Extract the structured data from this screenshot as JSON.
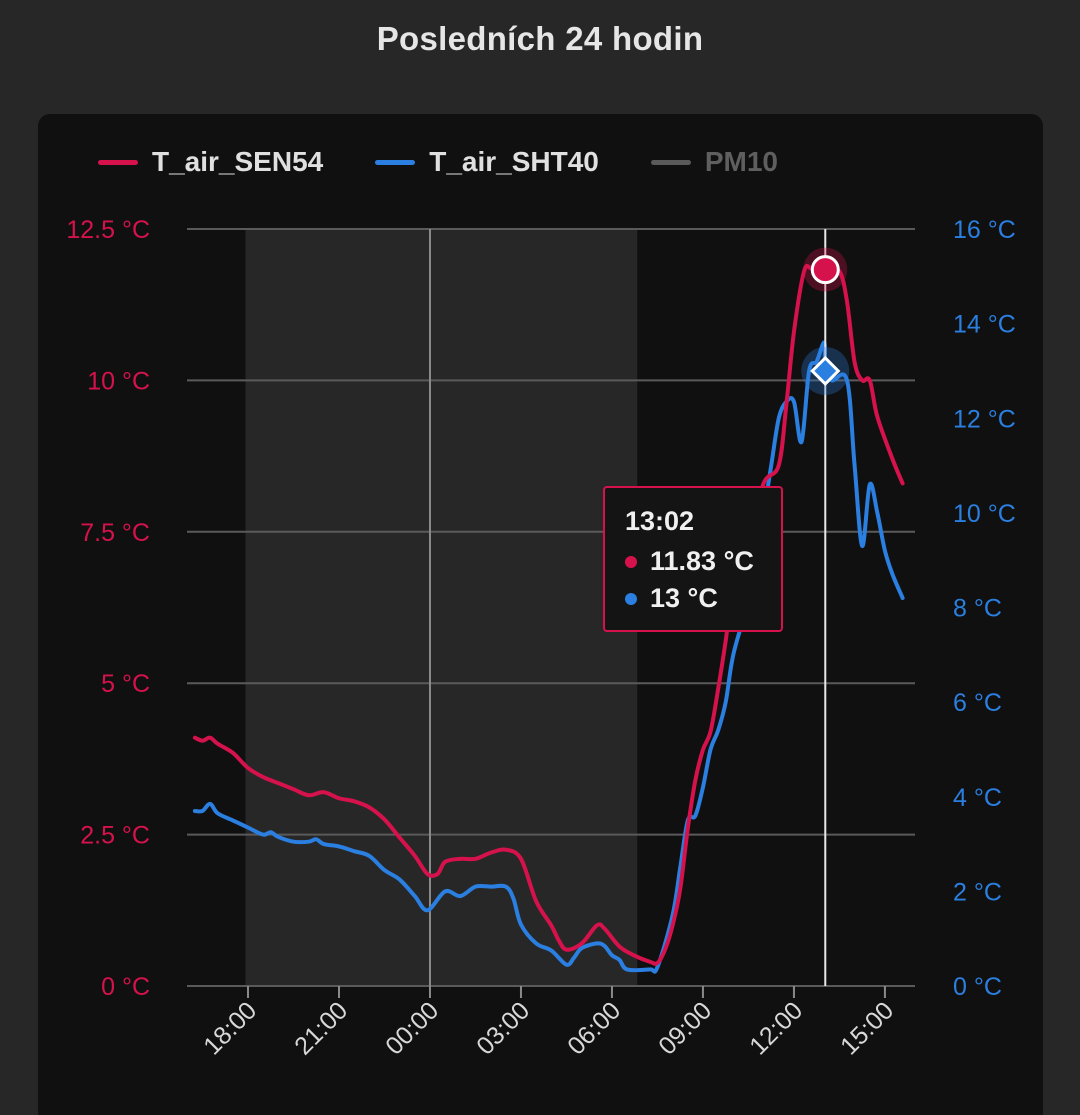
{
  "page": {
    "title": "Posledních 24 hodin"
  },
  "legend": [
    {
      "name": "T_air_SEN54",
      "color": "#d6124d",
      "hidden": false
    },
    {
      "name": "T_air_SHT40",
      "color": "#2a7fe0",
      "hidden": false
    },
    {
      "name": "PM10",
      "color": "#5a5a5a",
      "hidden": true
    }
  ],
  "tooltip": {
    "time": "13:02",
    "rows": [
      {
        "text": "11.83 °C",
        "color": "#d6124d"
      },
      {
        "text": "13 °C",
        "color": "#2a7fe0"
      }
    ]
  },
  "chart_data": {
    "type": "line",
    "x_unit": "hours",
    "x_range": [
      16.5,
      16.0
    ],
    "night_band": [
      "17:55",
      "06:50"
    ],
    "cursor_time": "13:02",
    "midnight_line": "00:00",
    "xticks": [
      "18:00",
      "21:00",
      "00:00",
      "03:00",
      "06:00",
      "09:00",
      "12:00",
      "15:00"
    ],
    "y_left": {
      "ticks": [
        "0 °C",
        "2.5 °C",
        "5 °C",
        "7.5 °C",
        "10 °C",
        "12.5 °C"
      ],
      "values": [
        0,
        2.5,
        5,
        7.5,
        10,
        12.5
      ],
      "range": [
        0,
        12.5
      ]
    },
    "y_right": {
      "ticks": [
        "0 °C",
        "2 °C",
        "4 °C",
        "6 °C",
        "8 °C",
        "10 °C",
        "12 °C",
        "14 °C",
        "16 °C"
      ],
      "values": [
        0,
        2,
        4,
        6,
        8,
        10,
        12,
        14,
        16
      ],
      "range": [
        0,
        16
      ]
    },
    "grid": true,
    "legend_position": "top-left",
    "series": [
      {
        "name": "T_air_SEN54",
        "axis": "left",
        "color": "#d6124d",
        "points": [
          [
            "16:15",
            4.1
          ],
          [
            "16:30",
            4.05
          ],
          [
            "16:45",
            4.1
          ],
          [
            "17:00",
            4.0
          ],
          [
            "17:30",
            3.85
          ],
          [
            "18:00",
            3.6
          ],
          [
            "18:30",
            3.45
          ],
          [
            "19:00",
            3.35
          ],
          [
            "19:30",
            3.25
          ],
          [
            "20:00",
            3.15
          ],
          [
            "20:30",
            3.2
          ],
          [
            "21:00",
            3.1
          ],
          [
            "21:30",
            3.05
          ],
          [
            "22:00",
            2.95
          ],
          [
            "22:30",
            2.75
          ],
          [
            "23:00",
            2.45
          ],
          [
            "23:30",
            2.15
          ],
          [
            "23:55",
            1.85
          ],
          [
            "00:15",
            1.85
          ],
          [
            "00:30",
            2.05
          ],
          [
            "01:00",
            2.1
          ],
          [
            "01:30",
            2.1
          ],
          [
            "02:00",
            2.2
          ],
          [
            "02:30",
            2.25
          ],
          [
            "03:00",
            2.1
          ],
          [
            "03:30",
            1.4
          ],
          [
            "04:00",
            1.0
          ],
          [
            "04:15",
            0.75
          ],
          [
            "04:30",
            0.6
          ],
          [
            "05:00",
            0.7
          ],
          [
            "05:30",
            1.0
          ],
          [
            "05:45",
            0.95
          ],
          [
            "06:15",
            0.65
          ],
          [
            "06:45",
            0.5
          ],
          [
            "07:15",
            0.4
          ],
          [
            "07:30",
            0.38
          ],
          [
            "07:45",
            0.6
          ],
          [
            "08:00",
            1.0
          ],
          [
            "08:15",
            1.6
          ],
          [
            "08:30",
            2.6
          ],
          [
            "08:45",
            3.4
          ],
          [
            "09:00",
            3.9
          ],
          [
            "09:15",
            4.2
          ],
          [
            "09:30",
            4.9
          ],
          [
            "09:45",
            5.7
          ],
          [
            "10:00",
            6.6
          ],
          [
            "10:30",
            7.4
          ],
          [
            "11:00",
            8.3
          ],
          [
            "11:30",
            8.6
          ],
          [
            "11:45",
            9.6
          ],
          [
            "12:00",
            10.8
          ],
          [
            "12:20",
            11.8
          ],
          [
            "12:35",
            11.85
          ],
          [
            "13:02",
            11.83
          ],
          [
            "13:30",
            11.8
          ],
          [
            "13:45",
            11.3
          ],
          [
            "14:00",
            10.3
          ],
          [
            "14:15",
            10.0
          ],
          [
            "14:30",
            10.0
          ],
          [
            "14:45",
            9.4
          ],
          [
            "15:15",
            8.7
          ],
          [
            "15:35",
            8.3
          ]
        ]
      },
      {
        "name": "T_air_SHT40",
        "axis": "right",
        "color": "#2a7fe0",
        "points": [
          [
            "16:15",
            3.7
          ],
          [
            "16:30",
            3.7
          ],
          [
            "16:45",
            3.85
          ],
          [
            "17:00",
            3.65
          ],
          [
            "17:30",
            3.5
          ],
          [
            "18:00",
            3.35
          ],
          [
            "18:30",
            3.2
          ],
          [
            "18:45",
            3.25
          ],
          [
            "19:00",
            3.15
          ],
          [
            "19:30",
            3.05
          ],
          [
            "20:00",
            3.05
          ],
          [
            "20:15",
            3.1
          ],
          [
            "20:30",
            3.0
          ],
          [
            "21:00",
            2.95
          ],
          [
            "21:30",
            2.85
          ],
          [
            "22:00",
            2.75
          ],
          [
            "22:30",
            2.45
          ],
          [
            "23:00",
            2.25
          ],
          [
            "23:30",
            1.9
          ],
          [
            "23:55",
            1.6
          ],
          [
            "00:30",
            2.0
          ],
          [
            "01:00",
            1.9
          ],
          [
            "01:30",
            2.1
          ],
          [
            "02:00",
            2.1
          ],
          [
            "02:30",
            2.1
          ],
          [
            "02:45",
            1.85
          ],
          [
            "03:00",
            1.3
          ],
          [
            "03:30",
            0.9
          ],
          [
            "04:00",
            0.75
          ],
          [
            "04:30",
            0.45
          ],
          [
            "04:45",
            0.6
          ],
          [
            "05:00",
            0.8
          ],
          [
            "05:30",
            0.9
          ],
          [
            "05:45",
            0.85
          ],
          [
            "06:00",
            0.65
          ],
          [
            "06:15",
            0.55
          ],
          [
            "06:30",
            0.35
          ],
          [
            "07:15",
            0.35
          ],
          [
            "07:30",
            0.4
          ],
          [
            "08:00",
            1.5
          ],
          [
            "08:15",
            2.5
          ],
          [
            "08:30",
            3.5
          ],
          [
            "08:45",
            3.6
          ],
          [
            "09:00",
            4.2
          ],
          [
            "09:15",
            5.0
          ],
          [
            "09:30",
            5.4
          ],
          [
            "09:45",
            6.0
          ],
          [
            "10:00",
            7.0
          ],
          [
            "10:30",
            8.2
          ],
          [
            "11:00",
            10.0
          ],
          [
            "11:15",
            11.0
          ],
          [
            "11:30",
            12.0
          ],
          [
            "11:45",
            12.35
          ],
          [
            "12:00",
            12.35
          ],
          [
            "12:15",
            11.5
          ],
          [
            "12:30",
            13.0
          ],
          [
            "12:45",
            13.2
          ],
          [
            "13:00",
            13.6
          ],
          [
            "13:02",
            13.0
          ],
          [
            "13:15",
            12.8
          ],
          [
            "13:45",
            12.8
          ],
          [
            "14:00",
            11.0
          ],
          [
            "14:15",
            9.3
          ],
          [
            "14:30",
            10.6
          ],
          [
            "14:45",
            10.0
          ],
          [
            "15:00",
            9.2
          ],
          [
            "15:15",
            8.7
          ],
          [
            "15:35",
            8.2
          ]
        ]
      }
    ]
  }
}
